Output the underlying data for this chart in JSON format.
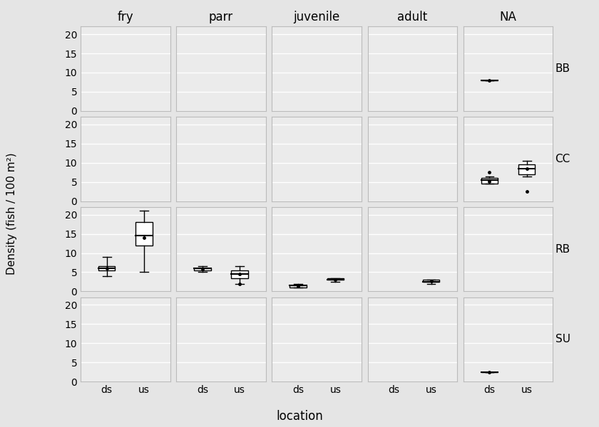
{
  "col_labels": [
    "fry",
    "parr",
    "juvenile",
    "adult",
    "NA"
  ],
  "row_labels": [
    "BB",
    "CC",
    "RB",
    "SU"
  ],
  "x_labels": [
    "ds",
    "us"
  ],
  "xlabel": "location",
  "ylabel": "Density (fish / 100 m²)",
  "ylim": [
    0,
    22
  ],
  "yticks": [
    0,
    5,
    10,
    15,
    20
  ],
  "background_color": "#e5e5e5",
  "panel_color": "#ebebeb",
  "boxplot_facecolor": "white",
  "boxplot_edgecolor": "black",
  "median_color": "black",
  "mean_color": "black",
  "title_fontsize": 12,
  "label_fontsize": 11,
  "tick_fontsize": 10,
  "boxplots": {
    "BB": {
      "fry": {
        "ds": null,
        "us": null
      },
      "parr": {
        "ds": null,
        "us": null
      },
      "juvenile": {
        "ds": null,
        "us": null
      },
      "adult": {
        "ds": null,
        "us": null
      },
      "NA": {
        "ds": {
          "q1": 8.0,
          "med": 8.0,
          "q3": 8.0,
          "wlo": 8.0,
          "whi": 8.0,
          "mean": 8.0,
          "fliers": []
        },
        "us": null
      }
    },
    "CC": {
      "fry": {
        "ds": null,
        "us": null
      },
      "parr": {
        "ds": null,
        "us": null
      },
      "juvenile": {
        "ds": null,
        "us": null
      },
      "adult": {
        "ds": null,
        "us": null
      },
      "NA": {
        "ds": {
          "q1": 4.5,
          "med": 5.5,
          "q3": 6.0,
          "wlo": 4.5,
          "whi": 6.5,
          "mean": 5.2,
          "fliers": [
            7.5
          ]
        },
        "us": {
          "q1": 7.0,
          "med": 8.5,
          "q3": 9.5,
          "wlo": 6.5,
          "whi": 10.5,
          "mean": 8.5,
          "fliers": [
            2.5
          ]
        }
      }
    },
    "RB": {
      "fry": {
        "ds": {
          "q1": 5.5,
          "med": 6.0,
          "q3": 6.5,
          "wlo": 4.0,
          "whi": 9.0,
          "mean": 6.0,
          "fliers": []
        },
        "us": {
          "q1": 12.0,
          "med": 14.5,
          "q3": 18.0,
          "wlo": 5.0,
          "whi": 21.0,
          "mean": 14.0,
          "fliers": []
        }
      },
      "parr": {
        "ds": {
          "q1": 5.5,
          "med": 6.0,
          "q3": 6.0,
          "wlo": 5.0,
          "whi": 6.5,
          "mean": 5.8,
          "fliers": []
        },
        "us": {
          "q1": 3.5,
          "med": 4.5,
          "q3": 5.5,
          "wlo": 2.0,
          "whi": 6.5,
          "mean": 4.5,
          "fliers": [
            2.0
          ]
        }
      },
      "juvenile": {
        "ds": {
          "q1": 1.0,
          "med": 1.5,
          "q3": 1.5,
          "wlo": 1.0,
          "whi": 2.0,
          "mean": 1.4,
          "fliers": []
        },
        "us": {
          "q1": 3.0,
          "med": 3.0,
          "q3": 3.5,
          "wlo": 2.5,
          "whi": 3.5,
          "mean": 3.1,
          "fliers": []
        }
      },
      "adult": {
        "ds": null,
        "us": {
          "q1": 2.5,
          "med": 2.5,
          "q3": 3.0,
          "wlo": 2.0,
          "whi": 3.0,
          "mean": 2.6,
          "fliers": []
        }
      },
      "NA": {
        "ds": null,
        "us": null
      }
    },
    "SU": {
      "fry": {
        "ds": null,
        "us": null
      },
      "parr": {
        "ds": null,
        "us": null
      },
      "juvenile": {
        "ds": null,
        "us": null
      },
      "adult": {
        "ds": null,
        "us": null
      },
      "NA": {
        "ds": {
          "q1": 2.5,
          "med": 2.5,
          "q3": 2.5,
          "wlo": 2.5,
          "whi": 2.5,
          "mean": 2.5,
          "fliers": []
        },
        "us": null
      }
    }
  }
}
